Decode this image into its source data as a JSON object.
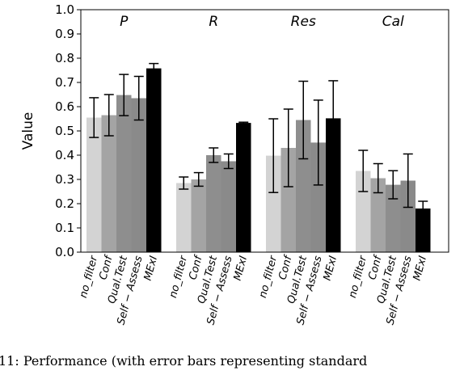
{
  "chart_data": {
    "type": "bar",
    "categories": [
      "P",
      "R",
      "Res",
      "Cal"
    ],
    "ylabel": "Value",
    "ylim": [
      0,
      1
    ],
    "yticks": [
      {
        "value": 0,
        "label": "0.0"
      },
      0.1,
      0.2,
      0.3,
      0.4,
      0.5,
      0.6,
      0.7,
      0.8,
      0.9,
      {
        "value": 1,
        "label": "1.0"
      }
    ],
    "series": [
      {
        "name": "no_filter",
        "color": "#d3d3d3",
        "values": [
          0.555,
          0.285,
          0.398,
          0.335
        ],
        "errors": [
          0.082,
          0.025,
          0.152,
          0.085
        ]
      },
      {
        "name": "Conf",
        "color": "#a4a4a4",
        "values": [
          0.565,
          0.3,
          0.43,
          0.305
        ],
        "errors": [
          0.085,
          0.028,
          0.16,
          0.06
        ]
      },
      {
        "name": "Qual.Test",
        "color": "#8e8e8e",
        "values": [
          0.648,
          0.4,
          0.545,
          0.278
        ],
        "errors": [
          0.085,
          0.03,
          0.16,
          0.058
        ]
      },
      {
        "name": "Self − Assess",
        "color": "#8a8a8a",
        "values": [
          0.635,
          0.375,
          0.452,
          0.295
        ],
        "errors": [
          0.09,
          0.03,
          0.175,
          0.11
        ]
      },
      {
        "name": "MExI",
        "color": "#000000",
        "values": [
          0.758,
          0.533,
          0.552,
          0.18
        ],
        "errors": [
          0.02,
          0.003,
          0.155,
          0.03
        ]
      }
    ],
    "caption": "11: Performance (with error bars representing standard"
  }
}
